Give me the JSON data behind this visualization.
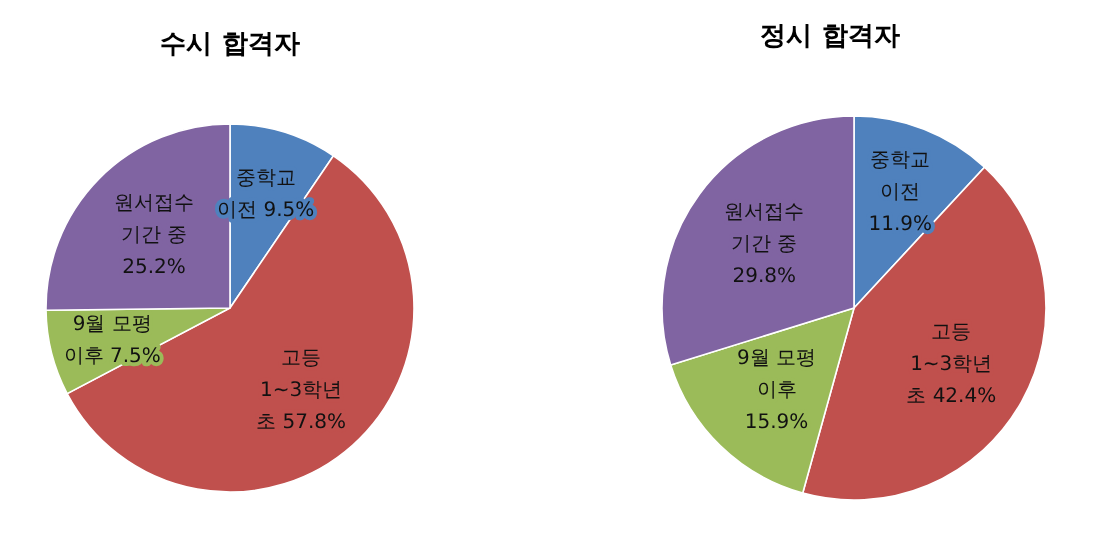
{
  "chart_data": [
    {
      "type": "pie",
      "title": "수시 합격자",
      "categories": [
        "중학교\n이전",
        "고등\n1~3학년\n초",
        "9월 모평\n이후",
        "원서접수\n기간 중\n"
      ],
      "values": [
        9.5,
        57.8,
        7.5,
        25.2
      ],
      "value_labels": [
        "9.5%",
        "57.8%",
        "7.5%",
        "25.2%"
      ],
      "colors": [
        "#4f81bd",
        "#c0504d",
        "#9bbb59",
        "#8064a2"
      ]
    },
    {
      "type": "pie",
      "title": "정시 합격자",
      "categories": [
        "중학교\n이전\n",
        "고등\n1~3학년\n초",
        "9월 모평\n이후\n",
        "원서접수\n기간 중\n"
      ],
      "values": [
        11.9,
        42.4,
        15.9,
        29.8
      ],
      "value_labels": [
        "11.9%",
        "42.4%",
        "15.9%",
        "29.8%"
      ],
      "colors": [
        "#4f81bd",
        "#c0504d",
        "#9bbb59",
        "#8064a2"
      ]
    }
  ]
}
